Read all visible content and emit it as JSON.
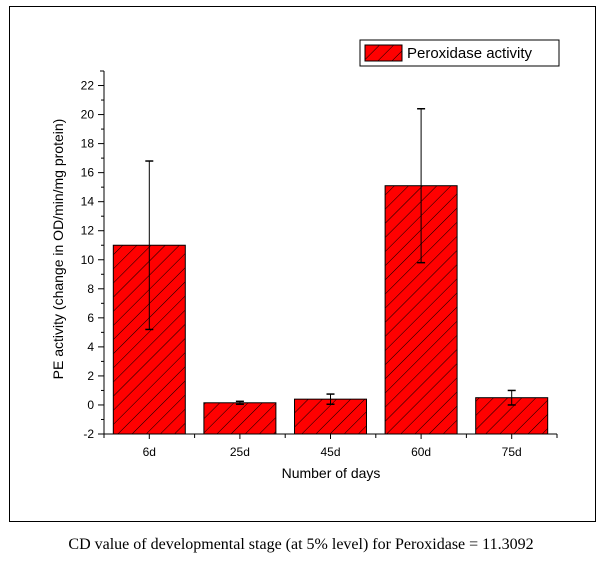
{
  "chart_data": {
    "type": "bar",
    "title": "",
    "xlabel": "Number of days",
    "ylabel": "PE activity (change in OD/min/mg protein)",
    "categories": [
      "6d",
      "25d",
      "45d",
      "60d",
      "75d"
    ],
    "series": [
      {
        "name": "Peroxidase activity",
        "values": [
          11.0,
          0.15,
          0.4,
          15.1,
          0.5
        ],
        "errors": [
          5.8,
          0.1,
          0.35,
          5.3,
          0.5
        ],
        "color": "#ff0000",
        "pattern": "diagonal-hatch"
      }
    ],
    "ylim": [
      -2,
      23
    ],
    "yticks": [
      -2,
      0,
      2,
      4,
      6,
      8,
      10,
      12,
      14,
      16,
      18,
      20,
      22
    ],
    "yminor_step": 1,
    "grid": false,
    "legend": {
      "position": "top-right",
      "entries": [
        "Peroxidase activity"
      ]
    }
  },
  "caption": "CD value of developmental stage (at 5% level) for Peroxidase = 11.3092"
}
